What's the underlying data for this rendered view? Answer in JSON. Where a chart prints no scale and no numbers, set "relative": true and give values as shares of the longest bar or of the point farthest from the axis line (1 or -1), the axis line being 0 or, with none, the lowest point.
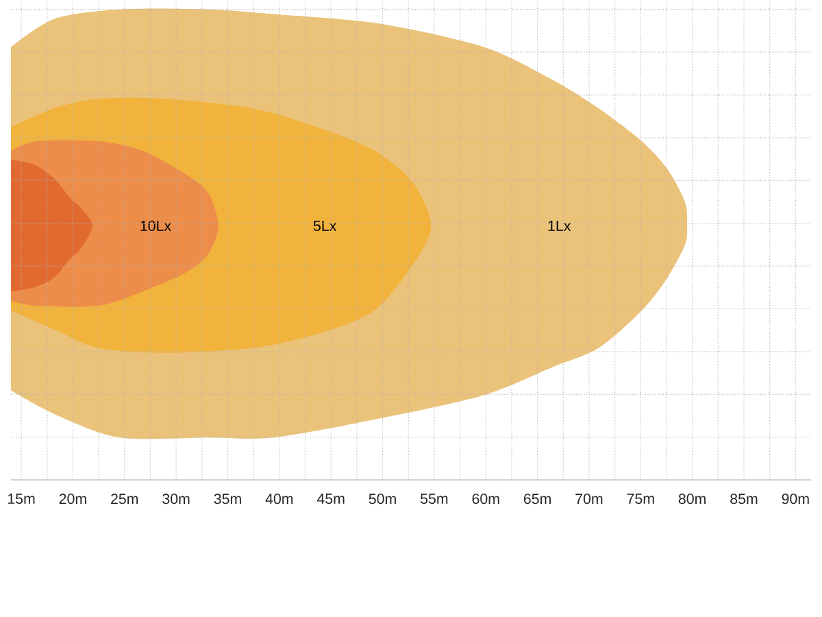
{
  "chart_data": {
    "type": "area",
    "relative": true,
    "grid": true,
    "tick_labels": "x",
    "xlim": [
      14,
      91.5
    ],
    "xticks": [
      {
        "value": 15,
        "label": "15m"
      },
      {
        "value": 17.5,
        "label": null
      },
      {
        "value": 20,
        "label": "20m"
      },
      {
        "value": 22.5,
        "label": null
      },
      {
        "value": 25,
        "label": "25m"
      },
      {
        "value": 27.5,
        "label": null
      },
      {
        "value": 30,
        "label": "30m"
      },
      {
        "value": 32.5,
        "label": null
      },
      {
        "value": 35,
        "label": "35m"
      },
      {
        "value": 37.5,
        "label": null
      },
      {
        "value": 40,
        "label": "40m"
      },
      {
        "value": 42.5,
        "label": null
      },
      {
        "value": 45,
        "label": "45m"
      },
      {
        "value": 47.5,
        "label": null
      },
      {
        "value": 50,
        "label": "50m"
      },
      {
        "value": 52.5,
        "label": null
      },
      {
        "value": 55,
        "label": "55m"
      },
      {
        "value": 57.5,
        "label": null
      },
      {
        "value": 60,
        "label": "60m"
      },
      {
        "value": 62.5,
        "label": null
      },
      {
        "value": 65,
        "label": "65m"
      },
      {
        "value": 67.5,
        "label": null
      },
      {
        "value": 70,
        "label": "70m"
      },
      {
        "value": 72.5,
        "label": null
      },
      {
        "value": 75,
        "label": "75m"
      },
      {
        "value": 77.5,
        "label": null
      },
      {
        "value": 80,
        "label": "80m"
      },
      {
        "value": 82.5,
        "label": null
      },
      {
        "value": 85,
        "label": "85m"
      },
      {
        "value": 87.5,
        "label": null
      },
      {
        "value": 90,
        "label": "90m"
      }
    ],
    "series": [
      {
        "name": "1Lx",
        "color": "#ebc27a",
        "x": [
          14.0,
          18.2,
          24.5,
          33.1,
          39.4,
          49.6,
          59.8,
          66.5,
          70.9,
          75.1,
          77.6,
          79.3,
          79.5,
          79.3,
          77.6,
          75.1,
          70.9,
          66.5,
          59.8,
          49.6,
          39.4,
          33.1,
          24.5,
          18.2,
          14.0
        ],
        "values": [
          0.92,
          0.98,
          1.0,
          1.0,
          0.99,
          0.97,
          0.92,
          0.85,
          0.79,
          0.72,
          0.66,
          0.59,
          0.54,
          0.5,
          0.43,
          0.36,
          0.28,
          0.24,
          0.18,
          0.13,
          0.09,
          0.09,
          0.09,
          0.14,
          0.19
        ]
      },
      {
        "name": "5Lx",
        "color": "#f2b33d",
        "x": [
          14.0,
          18.2,
          22.5,
          28.9,
          37.3,
          43.6,
          49.2,
          53.0,
          54.7,
          53.0,
          49.2,
          43.6,
          37.3,
          28.9,
          22.5,
          18.2,
          14.0
        ],
        "values": [
          0.75,
          0.79,
          0.81,
          0.81,
          0.79,
          0.75,
          0.7,
          0.63,
          0.54,
          0.46,
          0.36,
          0.31,
          0.28,
          0.27,
          0.28,
          0.32,
          0.36
        ]
      },
      {
        "name": "10Lx",
        "color": "#ec8d4a",
        "x": [
          14.0,
          16.5,
          22.5,
          26.7,
          30.9,
          33.1,
          34.1,
          33.1,
          30.9,
          26.7,
          22.5,
          16.5,
          14.0
        ],
        "values": [
          0.7,
          0.72,
          0.72,
          0.7,
          0.65,
          0.61,
          0.54,
          0.48,
          0.44,
          0.4,
          0.37,
          0.37,
          0.38
        ]
      },
      {
        "color": "#e06a30",
        "x": [
          14.0,
          16.3,
          18.2,
          19.7,
          20.7,
          21.9,
          20.7,
          19.7,
          18.2,
          16.3,
          14.0
        ],
        "values": [
          0.68,
          0.67,
          0.64,
          0.6,
          0.58,
          0.54,
          0.49,
          0.47,
          0.43,
          0.41,
          0.4
        ]
      }
    ]
  }
}
